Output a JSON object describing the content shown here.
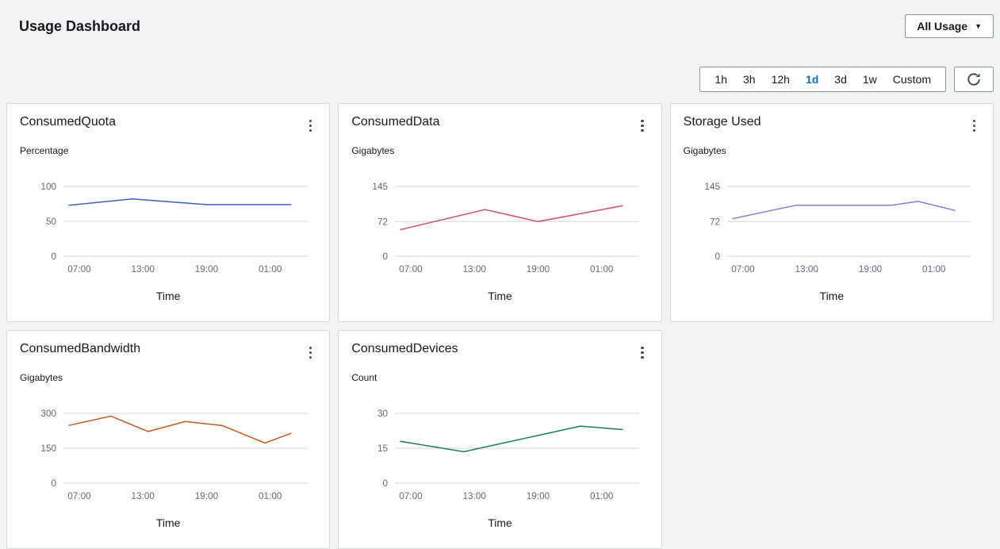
{
  "header": {
    "title": "Usage Dashboard",
    "usage_dropdown": {
      "label": "All Usage",
      "caret": "▼"
    }
  },
  "toolbar": {
    "ranges": [
      "1h",
      "3h",
      "12h",
      "1d",
      "3d",
      "1w",
      "Custom"
    ],
    "selected": "1d"
  },
  "colors": {
    "selected_range": "#0073bb",
    "card_border": "#d5dbdb",
    "grid_line": "#d5d5d5",
    "tick_text": "#5f6b7a"
  },
  "chart_data": [
    {
      "type": "line",
      "title": "ConsumedQuota",
      "unit": "Percentage",
      "xlabel": "Time",
      "color": "#3b5fc0",
      "yticks": [
        0,
        50,
        100
      ],
      "ylim": [
        0,
        100
      ],
      "xlim": [
        5.5,
        28.5
      ],
      "xtick_hours": [
        7,
        13,
        19,
        25
      ],
      "xtick_labels": [
        "07:00",
        "13:00",
        "19:00",
        "01:00"
      ],
      "x": [
        6,
        12,
        19,
        23,
        27
      ],
      "values": [
        73,
        82,
        74,
        74,
        74
      ]
    },
    {
      "type": "line",
      "title": "ConsumedData",
      "unit": "Gigabytes",
      "xlabel": "Time",
      "color": "#cf5068",
      "yticks": [
        0,
        72,
        145
      ],
      "ylim": [
        0,
        145
      ],
      "xlim": [
        5.5,
        28.5
      ],
      "xtick_hours": [
        7,
        13,
        19,
        25
      ],
      "xtick_labels": [
        "07:00",
        "13:00",
        "19:00",
        "01:00"
      ],
      "x": [
        6,
        14,
        19,
        27
      ],
      "values": [
        55,
        97,
        72,
        105
      ]
    },
    {
      "type": "line",
      "title": "Storage Used",
      "unit": "Gigabytes",
      "xlabel": "Time",
      "color": "#8a77cc",
      "yticks": [
        0,
        72,
        145
      ],
      "ylim": [
        0,
        145
      ],
      "xlim": [
        5.5,
        28.5
      ],
      "xtick_hours": [
        7,
        13,
        19,
        25
      ],
      "xtick_labels": [
        "07:00",
        "13:00",
        "19:00",
        "01:00"
      ],
      "x": [
        6,
        12,
        21,
        23.5,
        27
      ],
      "values": [
        78,
        106,
        106,
        114,
        95
      ]
    },
    {
      "type": "line",
      "title": "ConsumedBandwidth",
      "unit": "Gigabytes",
      "xlabel": "Time",
      "color": "#c9591d",
      "yticks": [
        0,
        150,
        300
      ],
      "ylim": [
        0,
        300
      ],
      "xlim": [
        5.5,
        28.5
      ],
      "xtick_hours": [
        7,
        13,
        19,
        25
      ],
      "xtick_labels": [
        "07:00",
        "13:00",
        "19:00",
        "01:00"
      ],
      "x": [
        6,
        10,
        13.5,
        17,
        20.5,
        24.5,
        27
      ],
      "values": [
        248,
        288,
        222,
        265,
        247,
        172,
        215
      ]
    },
    {
      "type": "line",
      "title": "ConsumedDevices",
      "unit": "Count",
      "xlabel": "Time",
      "color": "#147d64",
      "yticks": [
        0,
        15,
        30
      ],
      "ylim": [
        0,
        30
      ],
      "xlim": [
        5.5,
        28.5
      ],
      "xtick_hours": [
        7,
        13,
        19,
        25
      ],
      "xtick_labels": [
        "07:00",
        "13:00",
        "19:00",
        "01:00"
      ],
      "x": [
        6,
        12,
        23,
        27
      ],
      "values": [
        18,
        13.5,
        24.5,
        23
      ]
    }
  ]
}
